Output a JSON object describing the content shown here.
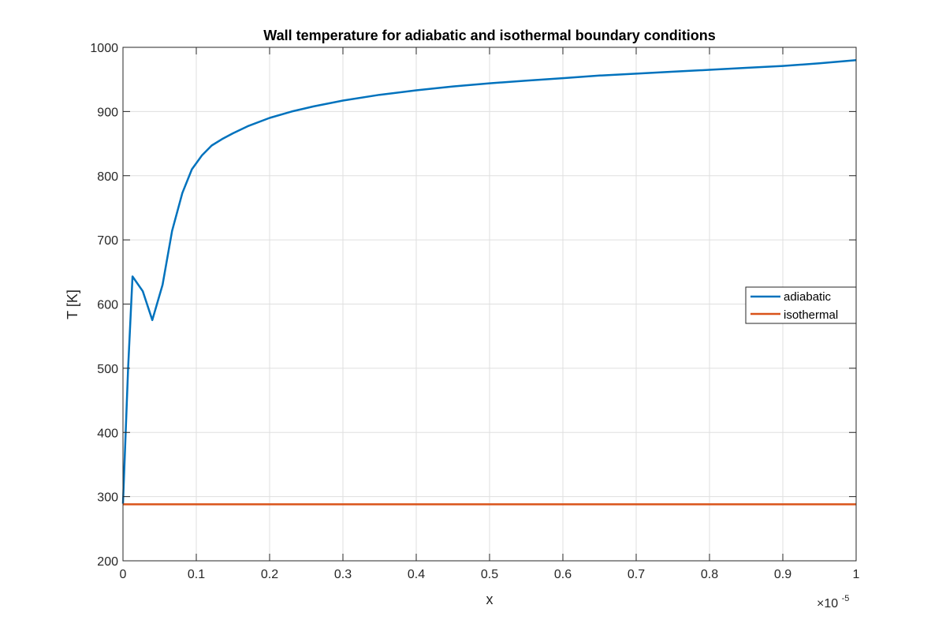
{
  "chart_data": {
    "type": "line",
    "title": "Wall temperature for adiabatic and isothermal boundary conditions",
    "xlabel": "x",
    "ylabel": "T [K]",
    "x_exponent_base": "×10",
    "x_exponent_power": "-5",
    "xlim": [
      0,
      1
    ],
    "ylim": [
      200,
      1000
    ],
    "xticks": [
      0,
      0.1,
      0.2,
      0.3,
      0.4,
      0.5,
      0.6,
      0.7,
      0.8,
      0.9,
      1
    ],
    "xtick_labels": [
      "0",
      "0.1",
      "0.2",
      "0.3",
      "0.4",
      "0.5",
      "0.6",
      "0.7",
      "0.8",
      "0.9",
      "1"
    ],
    "yticks": [
      200,
      300,
      400,
      500,
      600,
      700,
      800,
      900,
      1000
    ],
    "ytick_labels": [
      "200",
      "300",
      "400",
      "500",
      "600",
      "700",
      "800",
      "900",
      "1000"
    ],
    "grid": true,
    "legend_position": "right",
    "series": [
      {
        "name": "adiabatic",
        "color": "#0072BD",
        "x": [
          0,
          0.007,
          0.013,
          0.027,
          0.04,
          0.054,
          0.067,
          0.081,
          0.094,
          0.108,
          0.121,
          0.135,
          0.15,
          0.17,
          0.2,
          0.23,
          0.26,
          0.3,
          0.35,
          0.4,
          0.45,
          0.5,
          0.55,
          0.6,
          0.65,
          0.7,
          0.75,
          0.8,
          0.85,
          0.9,
          0.95,
          1.0
        ],
        "y": [
          289,
          500,
          643,
          620,
          575,
          630,
          714,
          773,
          810,
          832,
          847,
          857,
          866,
          877,
          890,
          900,
          908,
          917,
          926,
          933,
          939,
          944,
          948,
          952,
          956,
          959,
          962,
          965,
          968,
          971,
          975,
          980
        ]
      },
      {
        "name": "isothermal",
        "color": "#D95319",
        "x": [
          0,
          1
        ],
        "y": [
          288,
          288
        ]
      }
    ]
  }
}
